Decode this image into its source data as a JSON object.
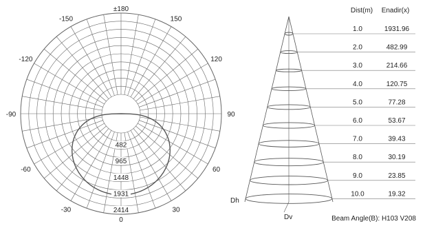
{
  "polar": {
    "top_label": "±180",
    "bottom_label": "0",
    "angle_labels": [
      {
        "side": "left",
        "angle": 150,
        "text": "-150"
      },
      {
        "side": "left",
        "angle": 120,
        "text": "-120"
      },
      {
        "side": "left",
        "angle": 90,
        "text": "-90"
      },
      {
        "side": "left",
        "angle": 60,
        "text": "-60"
      },
      {
        "side": "left",
        "angle": 30,
        "text": "-30"
      },
      {
        "side": "right",
        "angle": 150,
        "text": "150"
      },
      {
        "side": "right",
        "angle": 120,
        "text": "120"
      },
      {
        "side": "right",
        "angle": 90,
        "text": "90"
      },
      {
        "side": "right",
        "angle": 60,
        "text": "60"
      },
      {
        "side": "right",
        "angle": 30,
        "text": "30"
      }
    ],
    "ring_values": [
      "482",
      "965",
      "1448",
      "1931",
      "2414"
    ]
  },
  "cone": {
    "header_dist": "Dist(m)",
    "header_enadir": "Enadir(x)",
    "rows": [
      {
        "dist": "1.0",
        "lux": "1931.96"
      },
      {
        "dist": "2.0",
        "lux": "482.99"
      },
      {
        "dist": "3.0",
        "lux": "214.66"
      },
      {
        "dist": "4.0",
        "lux": "120.75"
      },
      {
        "dist": "5.0",
        "lux": "77.28"
      },
      {
        "dist": "6.0",
        "lux": "53.67"
      },
      {
        "dist": "7.0",
        "lux": "39.43"
      },
      {
        "dist": "8.0",
        "lux": "30.19"
      },
      {
        "dist": "9.0",
        "lux": "23.85"
      },
      {
        "dist": "10.0",
        "lux": "19.32"
      }
    ],
    "dh_label": "Dh",
    "dv_label": "Dv",
    "beam_angle": "Beam Angle(B): H103  V208"
  }
}
